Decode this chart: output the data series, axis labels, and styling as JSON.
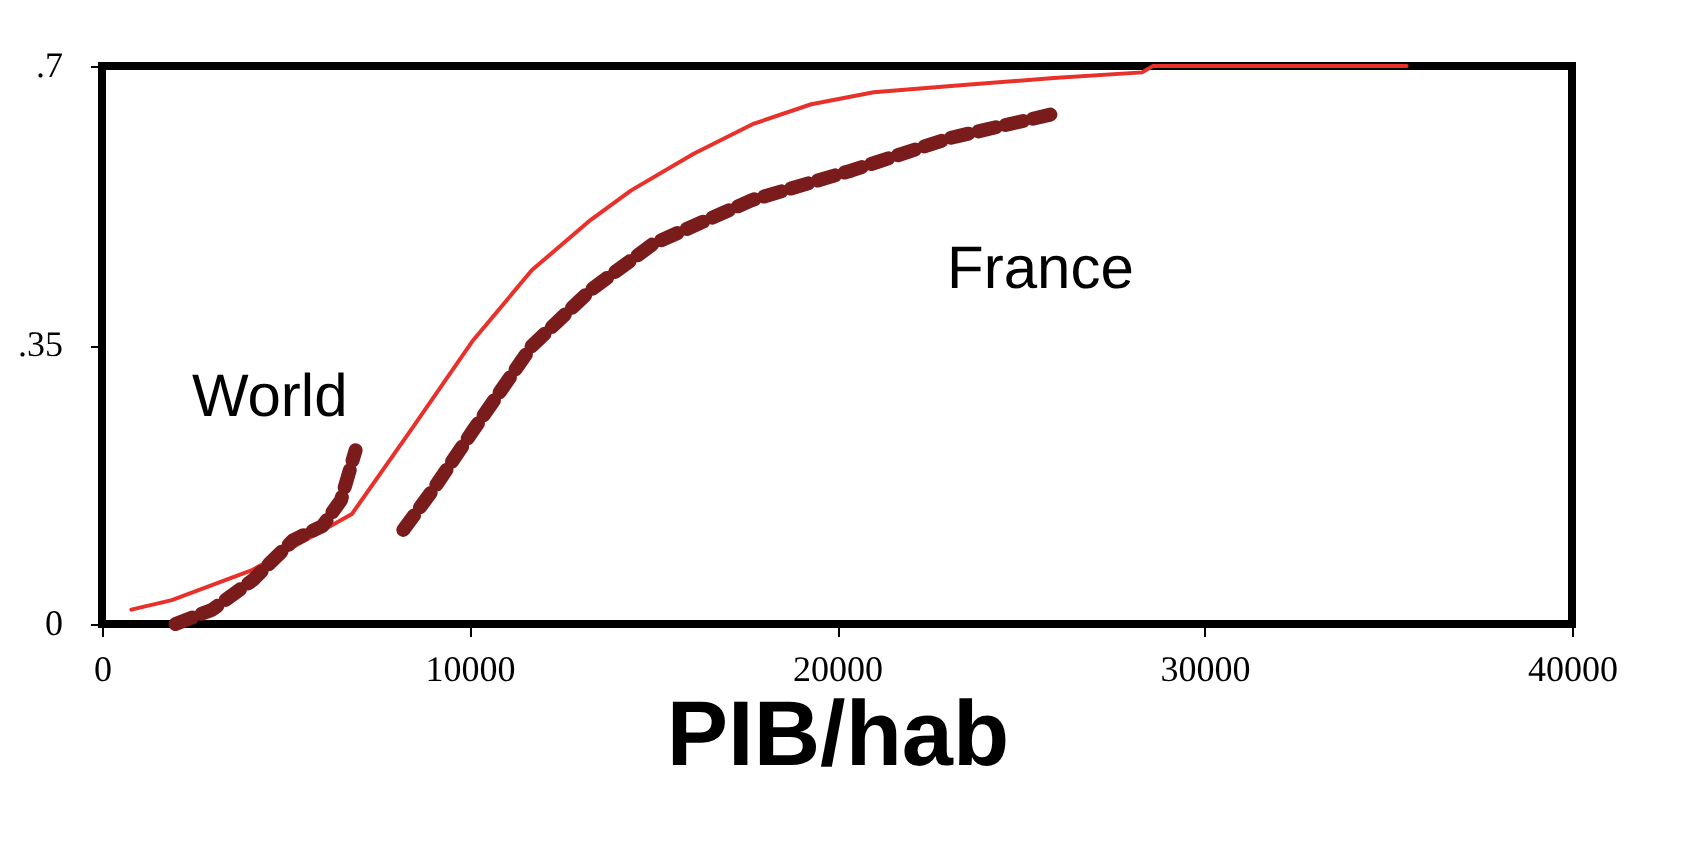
{
  "chart_data": {
    "type": "line",
    "xlabel": "PIB/hab",
    "xlim": [
      0,
      40000
    ],
    "xticks": [
      0,
      10000,
      20000,
      30000,
      40000
    ],
    "ylim": [
      0,
      0.7
    ],
    "yticks": [
      {
        "value": 0,
        "label": "0"
      },
      {
        "value": 0.35,
        "label": ".35"
      },
      {
        "value": 0.7,
        "label": ".7"
      }
    ],
    "grid": false,
    "legend": false,
    "series": [
      {
        "color": "#e8312a",
        "line_style": "solid",
        "x": [
          800,
          1900,
          4100,
          6800,
          8400,
          10100,
          11700,
          13300,
          14400,
          16100,
          17700,
          19300,
          21000,
          23100,
          25900,
          28300,
          28600,
          35500
        ],
        "values": [
          0.018,
          0.03,
          0.068,
          0.138,
          0.243,
          0.356,
          0.444,
          0.507,
          0.544,
          0.59,
          0.627,
          0.652,
          0.667,
          0.675,
          0.685,
          0.692,
          0.7,
          0.7
        ]
      },
      {
        "name": "World",
        "color": "#7b1c1c",
        "line_style": "dashed",
        "x": [
          2000,
          3000,
          4100,
          5200,
          6000,
          6500,
          6900
        ],
        "values": [
          0,
          0.018,
          0.055,
          0.105,
          0.123,
          0.155,
          0.218
        ]
      },
      {
        "name": "France",
        "color": "#7b1c1c",
        "line_style": "dashed",
        "x": [
          8200,
          9000,
          10100,
          11700,
          13300,
          15000,
          17700,
          20400,
          23100,
          25900
        ],
        "values": [
          0.118,
          0.168,
          0.243,
          0.349,
          0.419,
          0.477,
          0.532,
          0.569,
          0.61,
          0.64
        ]
      }
    ]
  }
}
